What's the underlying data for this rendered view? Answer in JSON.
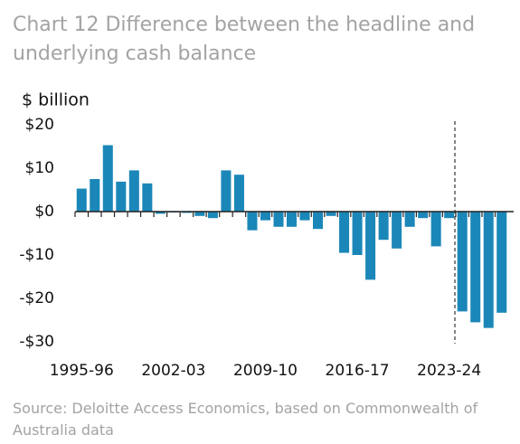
{
  "chart_data": {
    "type": "bar",
    "title": "Chart 12 Difference between the headline and underlying cash balance",
    "ylabel": "$ billion",
    "source": "Source: Deloitte Access Economics, based on Commonwealth of Australia data",
    "categories": [
      "1995-96",
      null,
      null,
      null,
      null,
      null,
      null,
      "2002-03",
      null,
      null,
      null,
      null,
      null,
      null,
      "2009-10",
      null,
      null,
      null,
      null,
      null,
      null,
      "2016-17",
      null,
      null,
      null,
      null,
      null,
      null,
      "2023-24",
      null,
      null,
      null,
      null
    ],
    "values": [
      5.3,
      7.5,
      15.3,
      6.9,
      9.5,
      6.5,
      -0.5,
      -0.2,
      -0.3,
      -1.0,
      -1.5,
      9.5,
      8.5,
      -4.3,
      -2.0,
      -3.5,
      -3.5,
      -2.0,
      -4.0,
      -1.0,
      -9.5,
      -10.0,
      -15.7,
      -6.5,
      -8.5,
      -3.5,
      -1.5,
      -8.0,
      -1.5,
      -23.0,
      -25.5,
      -26.8,
      -23.3
    ],
    "color": "#1b87b8",
    "ylim": [
      -30,
      20
    ],
    "yticks": [
      {
        "value": -30,
        "label": "-$30"
      },
      {
        "value": -20,
        "label": "-$20"
      },
      {
        "value": -10,
        "label": "-$10"
      },
      {
        "value": 0,
        "label": "$0"
      },
      {
        "value": 10,
        "label": "$10"
      },
      {
        "value": 20,
        "label": "$20"
      }
    ],
    "grid": false
  }
}
